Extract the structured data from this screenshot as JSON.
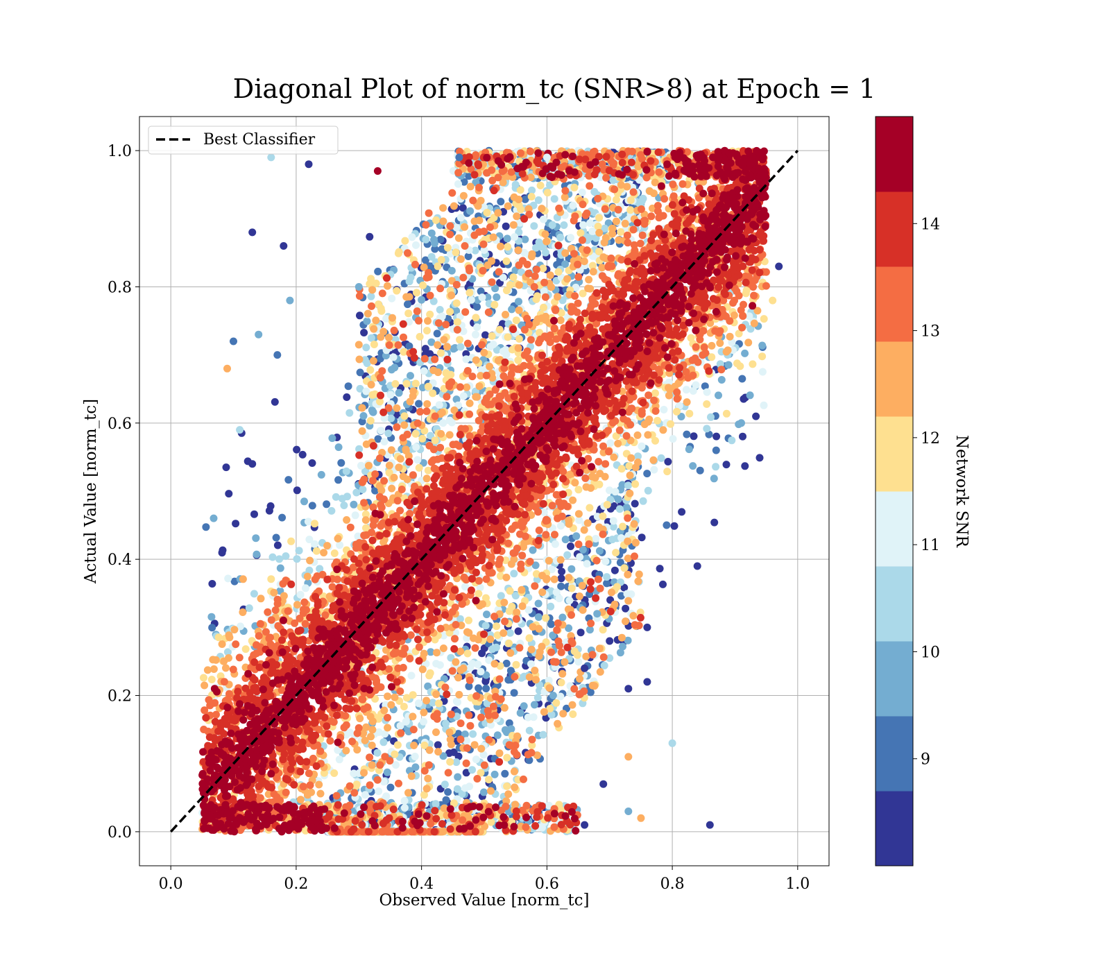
{
  "chart_data": {
    "type": "scatter",
    "title": "Diagonal Plot of norm_tc (SNR>8) at Epoch = 1",
    "xlabel": "Observed Value [norm_tc]",
    "ylabel": "Actual Value [norm_tc]",
    "xlim": [
      -0.05,
      1.05
    ],
    "ylim": [
      -0.05,
      1.05
    ],
    "xticks": [
      "0.0",
      "0.2",
      "0.4",
      "0.6",
      "0.8",
      "1.0"
    ],
    "yticks": [
      "0.0",
      "0.2",
      "0.4",
      "0.6",
      "0.8",
      "1.0"
    ],
    "grid": true,
    "legend": {
      "position": "top-left",
      "entries": [
        "Best Classifier"
      ]
    },
    "reference_line": {
      "name": "Best Classifier",
      "style": "dashed",
      "color": "#000000",
      "x": [
        0.0,
        1.0
      ],
      "y": [
        0.0,
        1.0
      ]
    },
    "colorbar": {
      "label": "Network SNR",
      "range": [
        8,
        15
      ],
      "ticks": [
        "9",
        "10",
        "11",
        "12",
        "13",
        "14"
      ],
      "colors": [
        "#313695",
        "#4575b4",
        "#74add1",
        "#abd9e9",
        "#e0f3f8",
        "#fee090",
        "#fdae61",
        "#f46d43",
        "#d73027",
        "#a50026"
      ]
    },
    "series": [
      {
        "points": [
          [
            0.16,
            0.99,
            10.6
          ],
          [
            0.13,
            0.88,
            8.5
          ],
          [
            0.18,
            0.86,
            8.5
          ],
          [
            0.19,
            0.78,
            9.5
          ],
          [
            0.1,
            0.72,
            9.3
          ],
          [
            0.14,
            0.73,
            9.8
          ],
          [
            0.09,
            0.68,
            12.4
          ],
          [
            0.17,
            0.7,
            9.2
          ],
          [
            0.11,
            0.59,
            10.2
          ],
          [
            0.13,
            0.54,
            8.6
          ],
          [
            0.22,
            0.98,
            8.5
          ],
          [
            0.33,
            0.97,
            14.5
          ],
          [
            0.84,
            0.39,
            8.5
          ],
          [
            0.86,
            0.01,
            8.5
          ],
          [
            0.8,
            0.13,
            10.4
          ],
          [
            0.75,
            0.02,
            12.4
          ],
          [
            0.73,
            0.11,
            12.4
          ],
          [
            0.73,
            0.03,
            9.8
          ],
          [
            0.73,
            0.21,
            8.5
          ],
          [
            0.76,
            0.3,
            8.5
          ],
          [
            0.76,
            0.22,
            8.5
          ],
          [
            0.97,
            0.83,
            8.5
          ],
          [
            0.91,
            0.6,
            9.5
          ],
          [
            0.96,
            0.78,
            11.5
          ],
          [
            0.87,
            0.56,
            9.2
          ],
          [
            0.07,
            0.21,
            14.5
          ],
          [
            0.66,
            0.01,
            8.5
          ],
          [
            0.69,
            0.07,
            8.5
          ],
          [
            0.61,
            0.2,
            9.8
          ],
          [
            0.66,
            0.24,
            8.5
          ],
          [
            0.7,
            0.28,
            8.5
          ],
          [
            0.68,
            0.32,
            9.5
          ],
          [
            0.46,
            0.99,
            9.2
          ],
          [
            0.55,
            0.95,
            10.6
          ],
          [
            0.6,
            0.99,
            11.4
          ],
          [
            0.3,
            0.8,
            9.5
          ]
        ]
      }
    ]
  }
}
